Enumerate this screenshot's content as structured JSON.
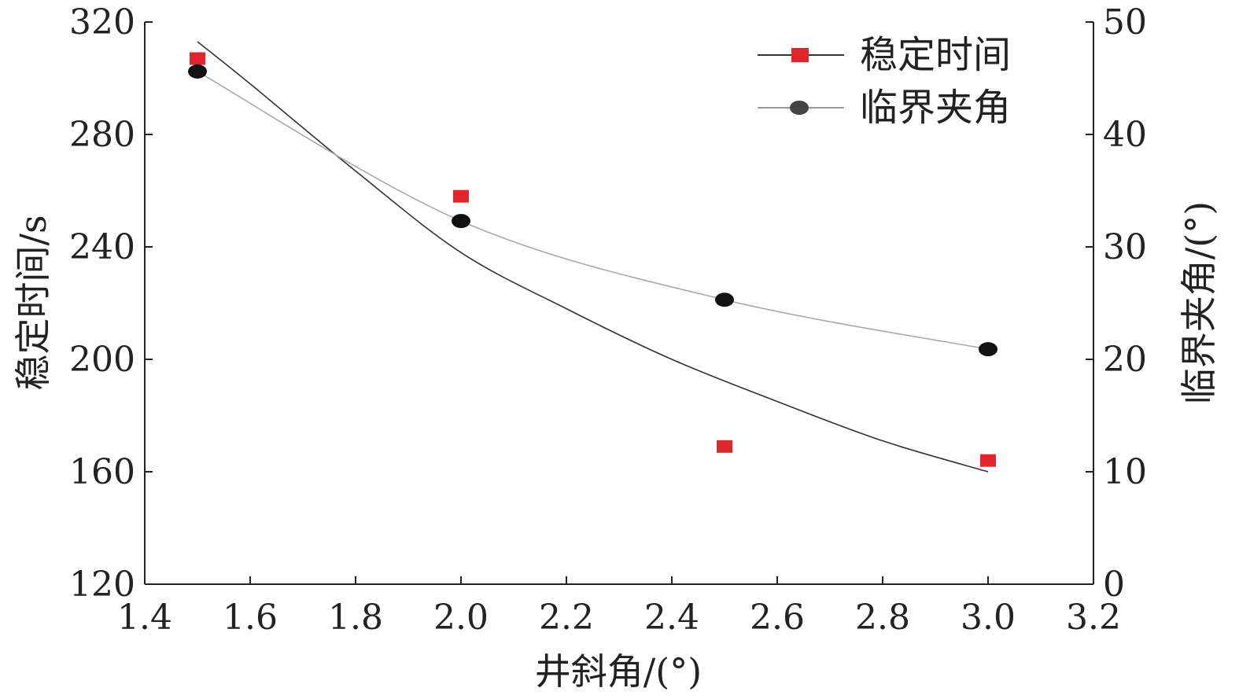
{
  "chart_data": {
    "type": "scatter",
    "xlabel": "井斜角/(°)",
    "ylabel_left": "稳定时间/s",
    "ylabel_right": "临界夹角/(°)",
    "xlim": [
      1.4,
      3.2
    ],
    "ylim_left": [
      120,
      320
    ],
    "ylim_right": [
      0,
      50
    ],
    "x_ticks": [
      "1.4",
      "1.6",
      "1.8",
      "2.0",
      "2.2",
      "2.4",
      "2.6",
      "2.8",
      "3.0",
      "3.2"
    ],
    "y_left_ticks": [
      "120",
      "160",
      "200",
      "240",
      "280",
      "320"
    ],
    "y_right_ticks": [
      "0",
      "10",
      "20",
      "30",
      "40",
      "50"
    ],
    "grid": false,
    "legend_position": "top-right",
    "series": [
      {
        "name": "稳定时间",
        "axis": "left",
        "marker": "square",
        "color": "#e0262b",
        "x": [
          1.5,
          2.0,
          2.5,
          3.0
        ],
        "y": [
          307,
          258,
          169,
          164
        ],
        "fit_curve": [
          [
            1.5,
            313
          ],
          [
            1.6,
            298
          ],
          [
            1.8,
            267
          ],
          [
            2.0,
            238
          ],
          [
            2.2,
            218
          ],
          [
            2.4,
            200
          ],
          [
            2.6,
            185
          ],
          [
            2.8,
            171
          ],
          [
            3.0,
            160
          ]
        ]
      },
      {
        "name": "临界夹角",
        "axis": "right",
        "marker": "circle",
        "color": "#111111",
        "x": [
          1.5,
          2.0,
          2.5,
          3.0
        ],
        "y": [
          45.6,
          32.3,
          25.3,
          20.9
        ],
        "fit_curve": [
          [
            1.5,
            45.6
          ],
          [
            2.0,
            32.3
          ],
          [
            2.5,
            25.3
          ],
          [
            3.0,
            20.9
          ]
        ]
      }
    ]
  }
}
